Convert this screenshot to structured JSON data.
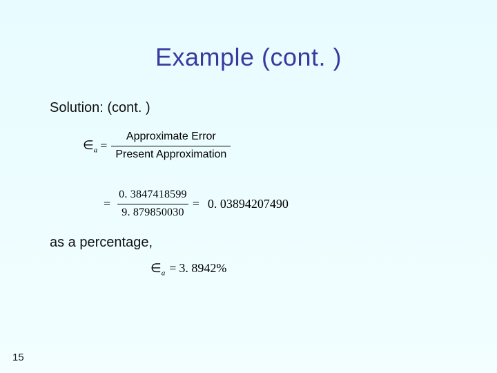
{
  "title": "Example (cont. )",
  "subtitle": "Solution: (cont. )",
  "formula1": {
    "symbol_html": "∈",
    "symbol_sub": "a",
    "equals": "=",
    "numerator": "Approximate Error",
    "denominator": "Present Approximation"
  },
  "formula2": {
    "equals_left": "=",
    "numerator": "0. 3847418599",
    "denominator": "9. 879850030",
    "equals_right": "=",
    "result": "0. 03894207490"
  },
  "percentage_label": "as a percentage,",
  "formula3": {
    "symbol_html": "∈",
    "symbol_sub": "a",
    "equals": "=",
    "value": "3. 8942%"
  },
  "page_number": "15",
  "colors": {
    "title_color": "#3a3a9e",
    "text_color": "#111111",
    "bg_top": "#e8fcff",
    "bg_bottom": "#f2feff"
  },
  "fonts": {
    "body": "Verdana",
    "math": "Times New Roman",
    "title_size_pt": 36,
    "body_size_pt": 20,
    "math_size_pt": 18
  }
}
